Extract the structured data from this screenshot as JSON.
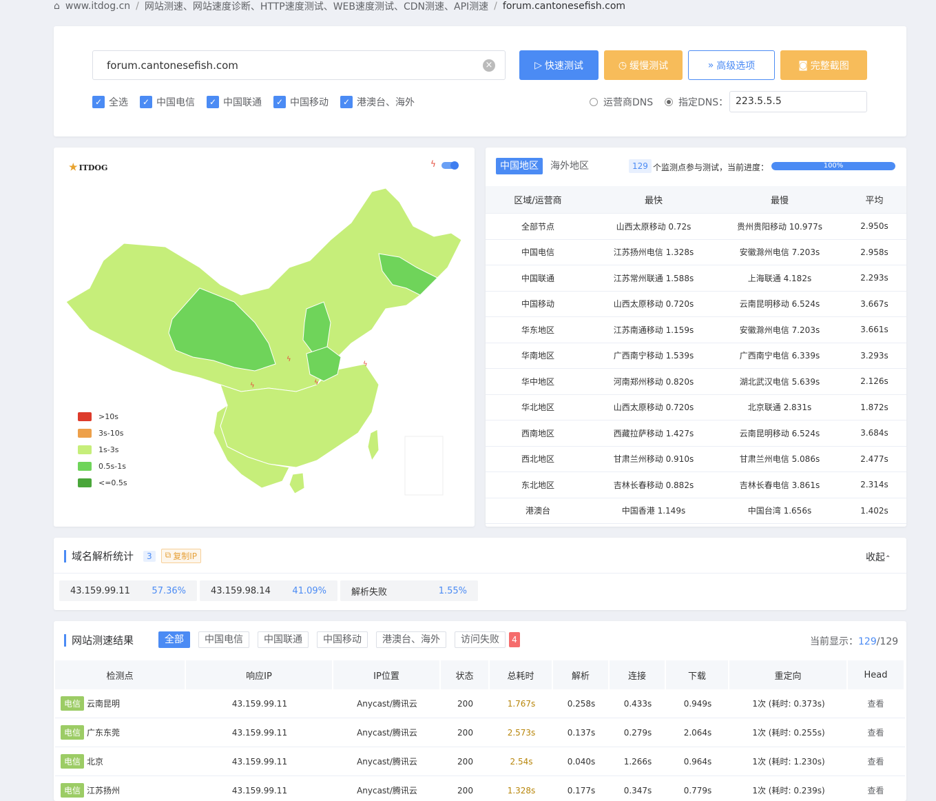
{
  "breadcrumb": {
    "home": "www.itdog.cn",
    "section": "网站测速、网站速度诊断、HTTP速度测试、WEB速度测试、CDN测速、API测速",
    "current": "forum.cantonesefish.com"
  },
  "search": {
    "value": "forum.cantonesefish.com"
  },
  "buttons": {
    "fast": "快速测试",
    "slow": "缓慢测试",
    "advanced": "高级选项",
    "screenshot": "完整截图"
  },
  "isp_filters": [
    {
      "label": "全选",
      "checked": true
    },
    {
      "label": "中国电信",
      "checked": true
    },
    {
      "label": "中国联通",
      "checked": true
    },
    {
      "label": "中国移动",
      "checked": true
    },
    {
      "label": "港澳台、海外",
      "checked": true
    }
  ],
  "dns": {
    "option1": "运营商DNS",
    "option2": "指定DNS：",
    "selected": "option2",
    "value": "223.5.5.5"
  },
  "map": {
    "logo": "ITDOG",
    "legend": [
      {
        "label": ">10s",
        "color": "#dd3b2b"
      },
      {
        "label": "3s-10s",
        "color": "#eda04a"
      },
      {
        "label": "1s-3s",
        "color": "#c6ee7a"
      },
      {
        "label": "0.5s-1s",
        "color": "#6fd45a"
      },
      {
        "label": "<=0.5s",
        "color": "#4aa63a"
      }
    ]
  },
  "summary": {
    "tabs": [
      "中国地区",
      "海外地区"
    ],
    "count": "129",
    "count_text": "个监测点参与测试，当前进度：",
    "progress": "100%",
    "progress_value": 100,
    "headers": [
      "区域/运营商",
      "最快",
      "最慢",
      "平均"
    ],
    "rows": [
      [
        "全部节点",
        "山西太原移动 0.72s",
        "贵州贵阳移动 10.977s",
        "2.950s"
      ],
      [
        "中国电信",
        "江苏扬州电信 1.328s",
        "安徽滁州电信 7.203s",
        "2.958s"
      ],
      [
        "中国联通",
        "江苏常州联通 1.588s",
        "上海联通 4.182s",
        "2.293s"
      ],
      [
        "中国移动",
        "山西太原移动 0.720s",
        "云南昆明移动 6.524s",
        "3.667s"
      ],
      [
        "华东地区",
        "江苏南通移动 1.159s",
        "安徽滁州电信 7.203s",
        "3.661s"
      ],
      [
        "华南地区",
        "广西南宁移动 1.539s",
        "广西南宁电信 6.339s",
        "3.293s"
      ],
      [
        "华中地区",
        "河南郑州移动 0.820s",
        "湖北武汉电信 5.639s",
        "2.126s"
      ],
      [
        "华北地区",
        "山西太原移动 0.720s",
        "北京联通 2.831s",
        "1.872s"
      ],
      [
        "西南地区",
        "西藏拉萨移动 1.427s",
        "云南昆明移动 6.524s",
        "3.684s"
      ],
      [
        "西北地区",
        "甘肃兰州移动 0.910s",
        "甘肃兰州电信 5.086s",
        "2.477s"
      ],
      [
        "东北地区",
        "吉林长春移动 0.882s",
        "吉林长春电信 3.861s",
        "2.314s"
      ],
      [
        "港澳台",
        "中国香港 1.149s",
        "中国台湾 1.656s",
        "1.402s"
      ]
    ]
  },
  "dns_stats": {
    "title": "域名解析统计",
    "count": "3",
    "copy": "复制IP",
    "collapse": "收起",
    "items": [
      {
        "ip": "43.159.99.11",
        "pct": "57.36%"
      },
      {
        "ip": "43.159.98.14",
        "pct": "41.09%"
      },
      {
        "ip": "解析失败",
        "pct": "1.55%"
      }
    ]
  },
  "results": {
    "title": "网站测速结果",
    "filters": [
      "全部",
      "中国电信",
      "中国联通",
      "中国移动",
      "港澳台、海外",
      "访问失败"
    ],
    "fail_count": "4",
    "display_label": "当前显示：",
    "display_count": "129",
    "display_total": "/129",
    "headers": [
      "检测点",
      "响应IP",
      "IP位置",
      "状态",
      "总耗时",
      "解析",
      "连接",
      "下载",
      "重定向",
      "Head"
    ],
    "rows": [
      {
        "isp": "电信",
        "node": "云南昆明",
        "ip": "43.159.99.11",
        "loc": "Anycast/腾讯云",
        "status": "200",
        "total": "1.767s",
        "dns": "0.258s",
        "conn": "0.433s",
        "down": "0.949s",
        "redir": "1次 (耗时: 0.373s)",
        "head": "查看"
      },
      {
        "isp": "电信",
        "node": "广东东莞",
        "ip": "43.159.99.11",
        "loc": "Anycast/腾讯云",
        "status": "200",
        "total": "2.573s",
        "dns": "0.137s",
        "conn": "0.279s",
        "down": "2.064s",
        "redir": "1次 (耗时: 0.255s)",
        "head": "查看"
      },
      {
        "isp": "电信",
        "node": "北京",
        "ip": "43.159.99.11",
        "loc": "Anycast/腾讯云",
        "status": "200",
        "total": "2.54s",
        "dns": "0.040s",
        "conn": "1.266s",
        "down": "0.964s",
        "redir": "1次 (耗时: 1.230s)",
        "head": "查看"
      },
      {
        "isp": "电信",
        "node": "江苏扬州",
        "ip": "43.159.99.11",
        "loc": "Anycast/腾讯云",
        "status": "200",
        "total": "1.328s",
        "dns": "0.177s",
        "conn": "0.347s",
        "down": "0.779s",
        "redir": "1次 (耗时: 0.239s)",
        "head": "查看"
      }
    ]
  }
}
